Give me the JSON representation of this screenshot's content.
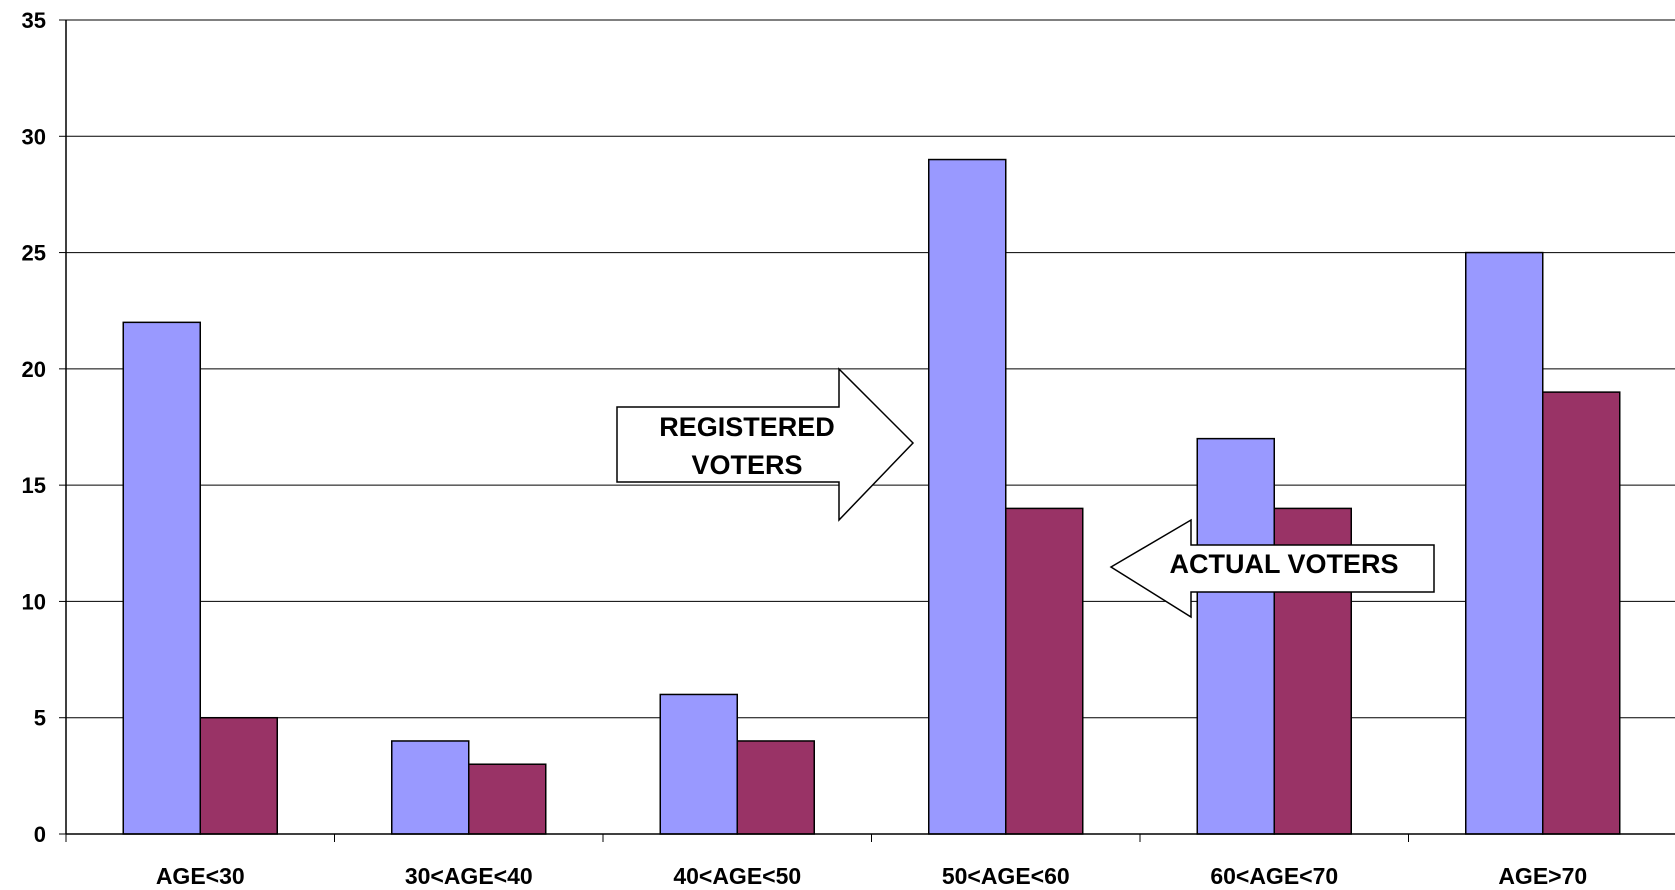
{
  "chart_data": {
    "type": "bar",
    "title": "",
    "xlabel": "",
    "ylabel": "",
    "ylim": [
      0,
      35
    ],
    "yticks": [
      0,
      5,
      10,
      15,
      20,
      25,
      30,
      35
    ],
    "grid": true,
    "legend": "none",
    "categories": [
      "AGE<30",
      "30<AGE<40",
      "40<AGE<50",
      "50<AGE<60",
      "60<AGE<70",
      "AGE>70"
    ],
    "series": [
      {
        "name": "REGISTERED VOTERS",
        "color": "#9999ff",
        "values": [
          22,
          4,
          6,
          29,
          17,
          25
        ]
      },
      {
        "name": "ACTUAL VOTERS",
        "color": "#993366",
        "values": [
          5,
          3,
          4,
          14,
          14,
          19
        ]
      }
    ],
    "annotations": [
      {
        "id": "registered",
        "lines": [
          "REGISTERED",
          "VOTERS"
        ],
        "direction": "right"
      },
      {
        "id": "actual",
        "lines": [
          "ACTUAL VOTERS"
        ],
        "direction": "left"
      }
    ]
  }
}
